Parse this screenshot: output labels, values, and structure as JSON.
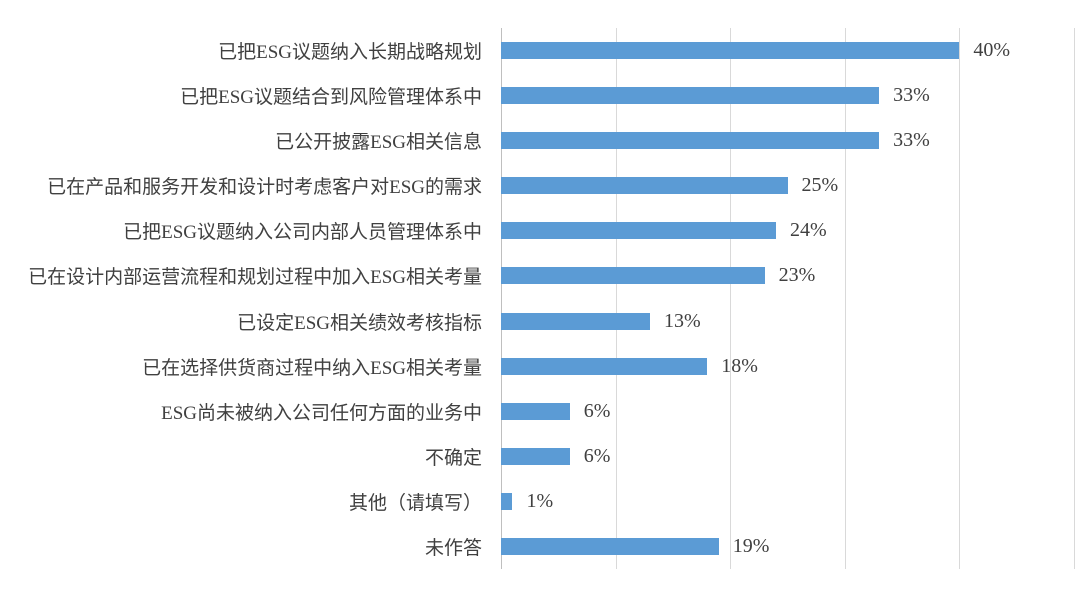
{
  "chart_data": {
    "type": "bar",
    "orientation": "horizontal",
    "title": "",
    "xlabel": "",
    "ylabel": "",
    "xlim": [
      0,
      50
    ],
    "gridline_interval": 10,
    "grid": true,
    "legend": false,
    "categories": [
      "已把ESG议题纳入长期战略规划",
      "已把ESG议题结合到风险管理体系中",
      "已公开披露ESG相关信息",
      "已在产品和服务开发和设计时考虑客户对ESG的需求",
      "已把ESG议题纳入公司内部人员管理体系中",
      "已在设计内部运营流程和规划过程中加入ESG相关考量",
      "已设定ESG相关绩效考核指标",
      "已在选择供货商过程中纳入ESG相关考量",
      "ESG尚未被纳入公司任何方面的业务中",
      "不确定",
      "其他（请填写）",
      "未作答"
    ],
    "values": [
      40,
      33,
      33,
      25,
      24,
      23,
      13,
      18,
      6,
      6,
      1,
      19
    ],
    "value_labels": [
      "40%",
      "33%",
      "33%",
      "25%",
      "24%",
      "23%",
      "13%",
      "18%",
      "6%",
      "6%",
      "1%",
      "19%"
    ],
    "colors": {
      "bar": "#5B9BD5",
      "gridline": "#D9D9D9",
      "axis_line": "#BFBFBF",
      "text": "#404040",
      "background": "#FFFFFF"
    }
  }
}
